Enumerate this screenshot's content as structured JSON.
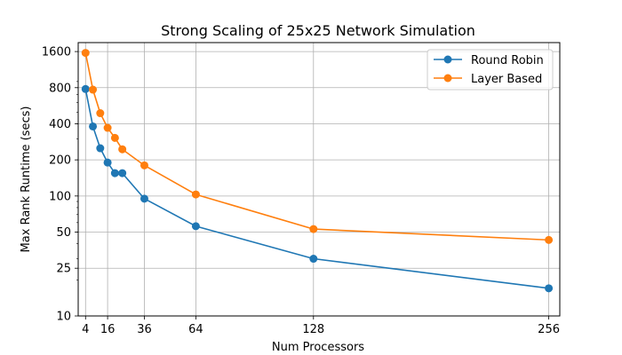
{
  "chart_data": {
    "type": "line",
    "title": "Strong Scaling of 25x25 Network Simulation",
    "xlabel": "Num Processors",
    "ylabel": "Max Rank Runtime (secs)",
    "x_scale": "linear",
    "y_scale": "log",
    "xlim": [
      0,
      262
    ],
    "ylim": [
      10,
      1900
    ],
    "xticks": [
      4,
      16,
      36,
      64,
      128,
      256
    ],
    "yticks": [
      10,
      25,
      50,
      100,
      200,
      400,
      800,
      1600
    ],
    "grid": true,
    "legend_position": "top-right",
    "series": [
      {
        "name": "Round Robin",
        "color": "#1f77b4",
        "marker": "circle",
        "x": [
          4,
          8,
          12,
          16,
          20,
          24,
          36,
          64,
          128,
          256
        ],
        "y": [
          780,
          380,
          250,
          190,
          155,
          155,
          95,
          56,
          30,
          17
        ]
      },
      {
        "name": "Layer Based",
        "color": "#ff7f0e",
        "marker": "circle",
        "x": [
          4,
          8,
          12,
          16,
          20,
          24,
          36,
          64,
          128,
          256
        ],
        "y": [
          1560,
          770,
          490,
          370,
          305,
          245,
          180,
          103,
          53,
          43
        ]
      }
    ]
  }
}
